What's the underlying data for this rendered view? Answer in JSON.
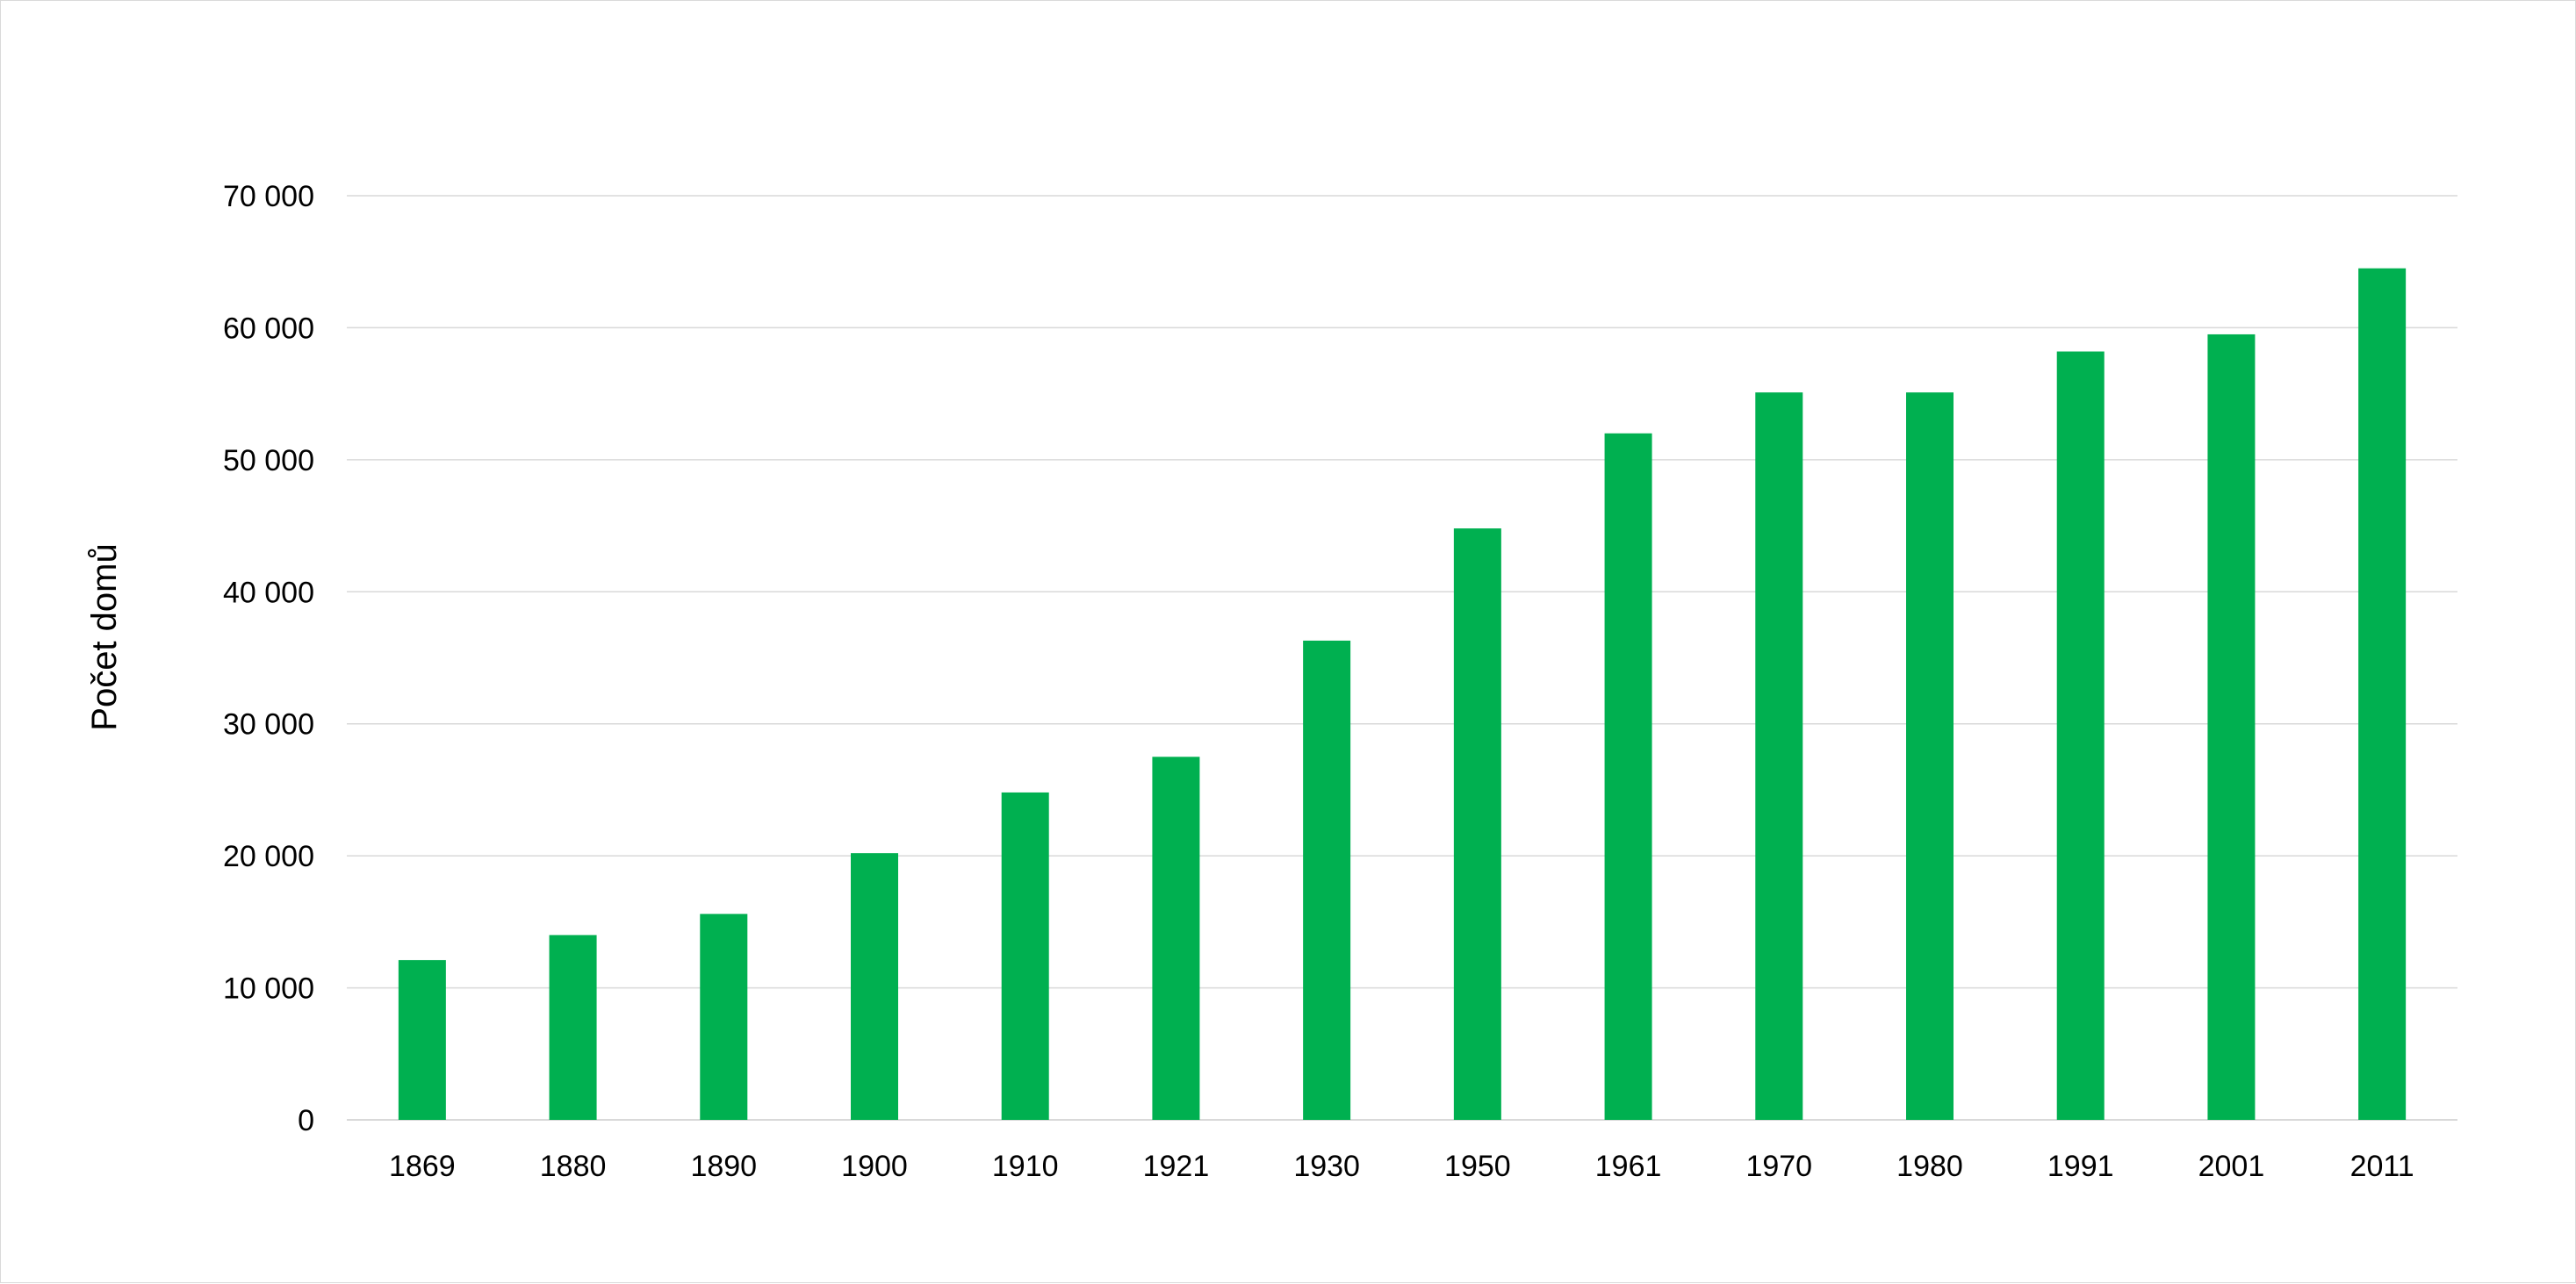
{
  "chart_data": {
    "type": "bar",
    "title": "",
    "xlabel": "",
    "ylabel": "Počet domů",
    "categories": [
      "1869",
      "1880",
      "1890",
      "1900",
      "1910",
      "1921",
      "1930",
      "1950",
      "1961",
      "1970",
      "1980",
      "1991",
      "2001",
      "2011"
    ],
    "series": [
      {
        "values": [
          12100,
          14000,
          15600,
          20200,
          24800,
          27500,
          36300,
          44800,
          52000,
          55100,
          55100,
          58200,
          59500,
          64500
        ]
      }
    ],
    "ylim": [
      0,
      70000
    ],
    "yticks": [
      0,
      10000,
      20000,
      30000,
      40000,
      50000,
      60000,
      70000
    ],
    "ytick_labels": [
      "0",
      "10 000",
      "20 000",
      "30 000",
      "40 000",
      "50 000",
      "60 000",
      "70 000"
    ],
    "grid": true,
    "legend": "none",
    "colors": {
      "bar": "#00b050",
      "grid": "#d9d9d9"
    }
  }
}
